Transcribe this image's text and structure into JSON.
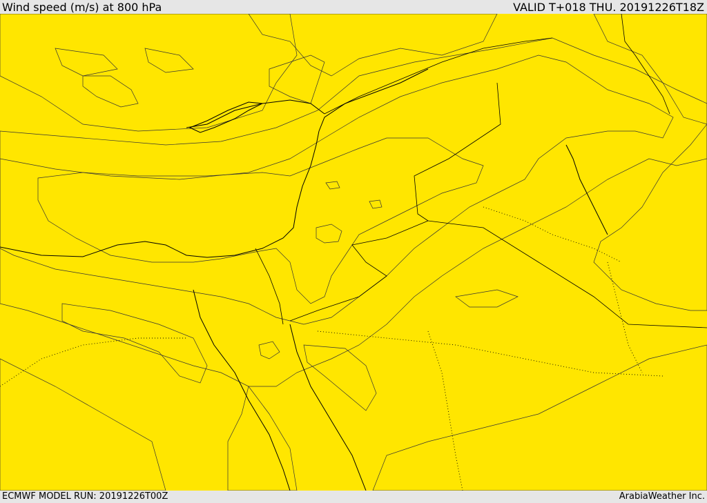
{
  "header": {
    "title": "Wind speed (m/s) at 800 hPa",
    "valid": "VALID T+018 THU. 20191226T18Z"
  },
  "footer": {
    "model_run": "ECMWF MODEL RUN: 20191226T00Z",
    "credit": "ArabiaWeather Inc."
  },
  "colors": {
    "calm_white": "#ffffff",
    "pale_peach": "#fddfa5",
    "bright_yellow": "#ffff00",
    "yellow": "#ffe600",
    "orange_yellow": "#ffcc00",
    "light_orange": "#ffb400",
    "orange": "#ff9f00",
    "deep_orange": "#ff7f10"
  }
}
